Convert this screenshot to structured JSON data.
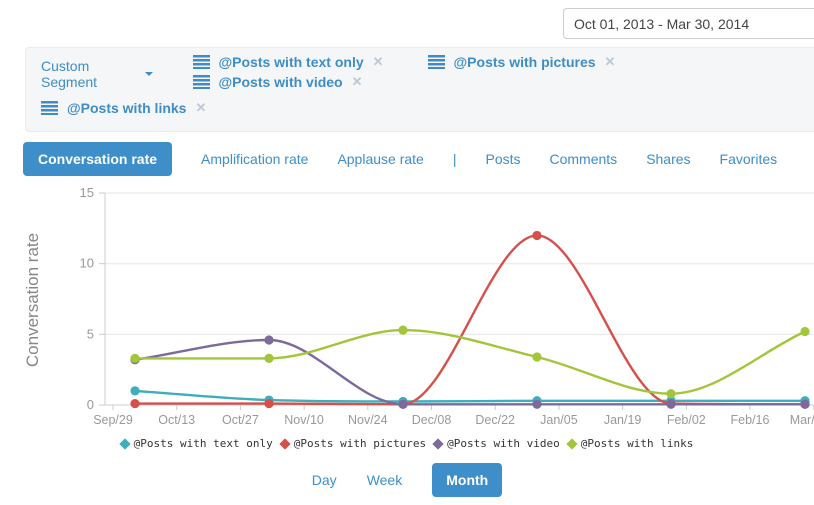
{
  "header": {
    "date_range": "Oct 01, 2013 - Mar 30, 2014"
  },
  "segment_bar": {
    "dropdown_label": "Custom Segment",
    "segments": [
      "@Posts with text only",
      "@Posts with pictures",
      "@Posts with video",
      "@Posts with links"
    ],
    "close_glyph": "✕"
  },
  "tabs": {
    "items": [
      {
        "label": "Conversation rate",
        "active": true
      },
      {
        "label": "Amplification rate",
        "active": false
      },
      {
        "label": "Applause rate",
        "active": false
      },
      {
        "label": "Posts",
        "active": false
      },
      {
        "label": "Comments",
        "active": false
      },
      {
        "label": "Shares",
        "active": false
      },
      {
        "label": "Favorites",
        "active": false
      }
    ],
    "divider_after_index": 2,
    "divider_glyph": "|"
  },
  "chart_data": {
    "type": "line",
    "title": "",
    "xlabel": "",
    "ylabel": "Conversation rate",
    "ylim": [
      0,
      15
    ],
    "yticks": [
      0,
      5,
      10,
      15
    ],
    "grid": true,
    "legend_position": "bottom",
    "x_tick_labels": [
      "Sep/29",
      "Oct/13",
      "Oct/27",
      "Nov/10",
      "Nov/24",
      "Dec/08",
      "Dec/22",
      "Jan/05",
      "Jan/19",
      "Feb/02",
      "Feb/16",
      "Mar/"
    ],
    "x_points_estimated_dates": [
      "Oct/01",
      "Nov/01",
      "Dec/01",
      "Jan/01",
      "Feb/01",
      "Mar/01"
    ],
    "series": [
      {
        "name": "@Posts with text only",
        "color": "#3caebc",
        "values": [
          1.0,
          0.35,
          0.25,
          0.3,
          0.3,
          0.3
        ]
      },
      {
        "name": "@Posts with pictures",
        "color": "#d6504b",
        "values": [
          0.1,
          0.1,
          0.05,
          12.0,
          0.1,
          0.05
        ]
      },
      {
        "name": "@Posts with video",
        "color": "#7c6a9c",
        "values": [
          3.2,
          4.6,
          0.05,
          0.05,
          0.05,
          0.05
        ]
      },
      {
        "name": "@Posts with links",
        "color": "#a2c53a",
        "values": [
          3.3,
          3.3,
          5.3,
          3.4,
          0.8,
          5.2
        ]
      }
    ]
  },
  "granularity": {
    "options": [
      "Day",
      "Week",
      "Month"
    ],
    "active": "Month"
  },
  "colors": {
    "accent_blue": "#3d8ec9",
    "link_blue": "#3f8dc6",
    "axis_line": "#cccccc",
    "grid_line": "#e6e6e6",
    "tick_text": "#97999b",
    "panel_bg": "#f5f6f7"
  }
}
